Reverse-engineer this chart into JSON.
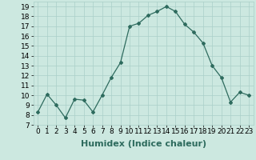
{
  "x": [
    0,
    1,
    2,
    3,
    4,
    5,
    6,
    7,
    8,
    9,
    10,
    11,
    12,
    13,
    14,
    15,
    16,
    17,
    18,
    19,
    20,
    21,
    22,
    23
  ],
  "y": [
    8.3,
    10.1,
    9.0,
    7.7,
    9.6,
    9.5,
    8.3,
    10.0,
    11.8,
    13.3,
    17.0,
    17.3,
    18.1,
    18.5,
    19.0,
    18.5,
    17.2,
    16.4,
    15.3,
    13.0,
    11.8,
    9.3,
    10.3,
    10.0
  ],
  "xlabel": "Humidex (Indice chaleur)",
  "ylim": [
    7,
    19.5
  ],
  "xlim": [
    -0.5,
    23.5
  ],
  "yticks": [
    7,
    8,
    9,
    10,
    11,
    12,
    13,
    14,
    15,
    16,
    17,
    18,
    19
  ],
  "xticks": [
    0,
    1,
    2,
    3,
    4,
    5,
    6,
    7,
    8,
    9,
    10,
    11,
    12,
    13,
    14,
    15,
    16,
    17,
    18,
    19,
    20,
    21,
    22,
    23
  ],
  "xtick_labels": [
    "0",
    "1",
    "2",
    "3",
    "4",
    "5",
    "6",
    "7",
    "8",
    "9",
    "10",
    "11",
    "12",
    "13",
    "14",
    "15",
    "16",
    "17",
    "18",
    "19",
    "20",
    "21",
    "22",
    "23"
  ],
  "line_color": "#2e6b5e",
  "marker": "D",
  "marker_size": 2,
  "bg_color": "#cce8e0",
  "grid_color": "#aacfc8",
  "xlabel_fontsize": 8,
  "tick_fontsize": 6.5
}
